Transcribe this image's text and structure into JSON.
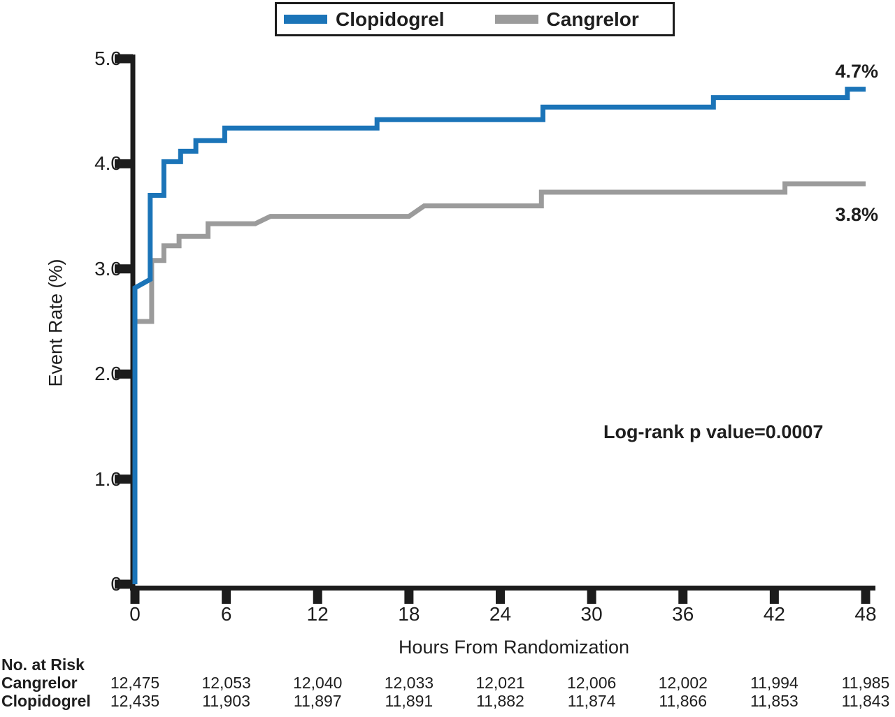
{
  "chart_data": {
    "type": "line",
    "subtype": "kaplan-meier-step",
    "xlabel": "Hours From Randomization",
    "ylabel": "Event Rate (%)",
    "xlim": [
      0,
      48
    ],
    "ylim": [
      0,
      5.0
    ],
    "x_ticks": [
      0,
      6,
      12,
      18,
      24,
      30,
      36,
      42,
      48
    ],
    "x_tick_labels": [
      "0",
      "6",
      "12",
      "18",
      "24",
      "30",
      "36",
      "42",
      "48"
    ],
    "y_ticks": [
      0,
      1,
      2,
      3,
      4,
      5
    ],
    "y_tick_labels": [
      "0",
      "1.0",
      "2.0",
      "3.0",
      "4.0",
      "5.0"
    ],
    "grid": false,
    "legend_position": "top-center",
    "axis_color": "#1c1c1c",
    "annotation": "Log-rank p value=0.0007",
    "series": [
      {
        "name": "Clopidogrel",
        "color": "#1b74b8",
        "end_label": "4.7%",
        "points": [
          [
            0,
            0
          ],
          [
            0,
            2.82
          ],
          [
            1.0,
            2.9
          ],
          [
            1.0,
            3.7
          ],
          [
            1.9,
            3.7
          ],
          [
            1.9,
            4.02
          ],
          [
            3.0,
            4.02
          ],
          [
            3.0,
            4.12
          ],
          [
            4.0,
            4.12
          ],
          [
            4.0,
            4.22
          ],
          [
            5.9,
            4.22
          ],
          [
            5.9,
            4.34
          ],
          [
            15.9,
            4.34
          ],
          [
            15.9,
            4.42
          ],
          [
            26.8,
            4.42
          ],
          [
            26.8,
            4.54
          ],
          [
            38.0,
            4.54
          ],
          [
            38.0,
            4.63
          ],
          [
            46.8,
            4.63
          ],
          [
            46.8,
            4.71
          ],
          [
            48,
            4.71
          ]
        ]
      },
      {
        "name": "Cangrelor",
        "color": "#9b9b9b",
        "end_label": "3.8%",
        "points": [
          [
            0,
            0
          ],
          [
            0,
            2.5
          ],
          [
            1.1,
            2.5
          ],
          [
            1.1,
            3.08
          ],
          [
            1.9,
            3.08
          ],
          [
            1.9,
            3.22
          ],
          [
            2.9,
            3.22
          ],
          [
            2.9,
            3.31
          ],
          [
            4.8,
            3.31
          ],
          [
            4.8,
            3.43
          ],
          [
            7.9,
            3.43
          ],
          [
            8.9,
            3.5
          ],
          [
            18.0,
            3.5
          ],
          [
            19.0,
            3.6
          ],
          [
            26.7,
            3.6
          ],
          [
            26.7,
            3.73
          ],
          [
            42.7,
            3.73
          ],
          [
            42.7,
            3.81
          ],
          [
            48,
            3.81
          ]
        ]
      }
    ]
  },
  "risk_table": {
    "header": "No. at Risk",
    "rows": [
      {
        "label": "Cangrelor",
        "values": [
          "12,475",
          "12,053",
          "12,040",
          "12,033",
          "12,021",
          "12,006",
          "12,002",
          "11,994",
          "11,985"
        ]
      },
      {
        "label": "Clopidogrel",
        "values": [
          "12,435",
          "11,903",
          "11,897",
          "11,891",
          "11,882",
          "11,874",
          "11,866",
          "11,853",
          "11,843"
        ]
      }
    ]
  }
}
